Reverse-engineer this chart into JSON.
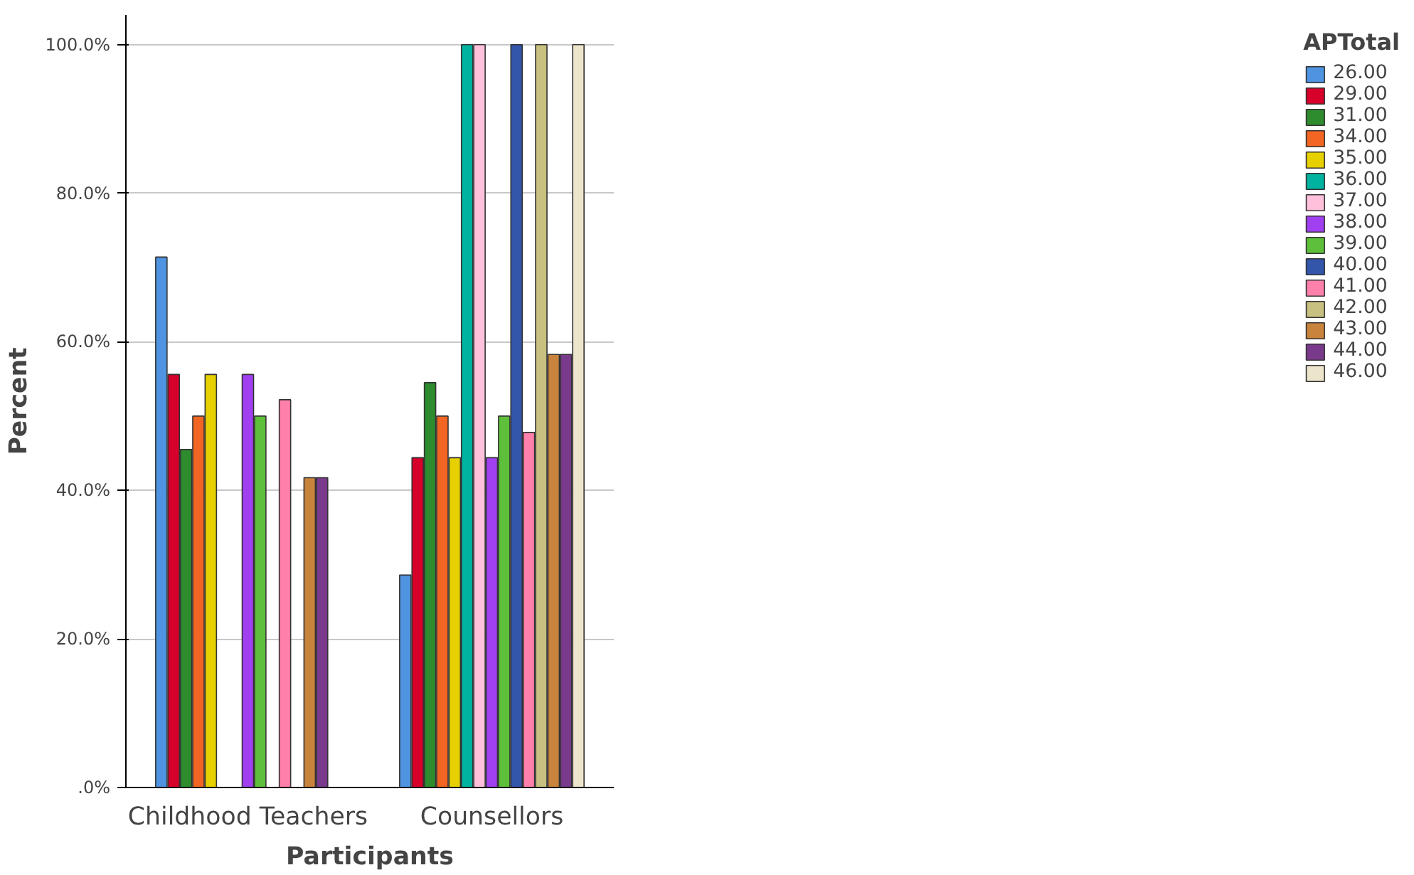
{
  "chart_data": {
    "type": "bar",
    "xlabel": "Participants",
    "ylabel": "Percent",
    "legend_title": "APTotal",
    "categories": [
      "Childhood Teachers",
      "Counsellors"
    ],
    "series": [
      {
        "name": "26.00",
        "color": "#4f94e0",
        "values": [
          71.4,
          28.6
        ]
      },
      {
        "name": "29.00",
        "color": "#d6002a",
        "values": [
          55.6,
          44.4
        ]
      },
      {
        "name": "31.00",
        "color": "#2e8b2e",
        "values": [
          45.5,
          54.5
        ]
      },
      {
        "name": "34.00",
        "color": "#f26522",
        "values": [
          50.0,
          50.0
        ]
      },
      {
        "name": "35.00",
        "color": "#e6d000",
        "values": [
          55.6,
          44.4
        ]
      },
      {
        "name": "36.00",
        "color": "#00b3a0",
        "values": [
          null,
          100.0
        ]
      },
      {
        "name": "37.00",
        "color": "#ffc0dc",
        "values": [
          null,
          100.0
        ]
      },
      {
        "name": "38.00",
        "color": "#a040f0",
        "values": [
          55.6,
          44.4
        ]
      },
      {
        "name": "39.00",
        "color": "#5ec03a",
        "values": [
          50.0,
          50.0
        ]
      },
      {
        "name": "40.00",
        "color": "#3355aa",
        "values": [
          null,
          100.0
        ]
      },
      {
        "name": "41.00",
        "color": "#ff80aa",
        "values": [
          52.2,
          47.8
        ]
      },
      {
        "name": "42.00",
        "color": "#c8c080",
        "values": [
          null,
          100.0
        ]
      },
      {
        "name": "43.00",
        "color": "#c8843c",
        "values": [
          41.7,
          58.3
        ]
      },
      {
        "name": "44.00",
        "color": "#7a3a8c",
        "values": [
          41.7,
          58.3
        ]
      },
      {
        "name": "46.00",
        "color": "#ede4cc",
        "values": [
          null,
          100.0
        ]
      }
    ],
    "ylim": [
      0,
      104
    ],
    "yticks": [
      {
        "value": 0,
        "label": ".0%"
      },
      {
        "value": 20,
        "label": "20.0%"
      },
      {
        "value": 40,
        "label": "40.0%"
      },
      {
        "value": 60,
        "label": "60.0%"
      },
      {
        "value": 80,
        "label": "80.0%"
      },
      {
        "value": 100,
        "label": "100.0%"
      }
    ],
    "grid": "y",
    "legend": "right"
  }
}
